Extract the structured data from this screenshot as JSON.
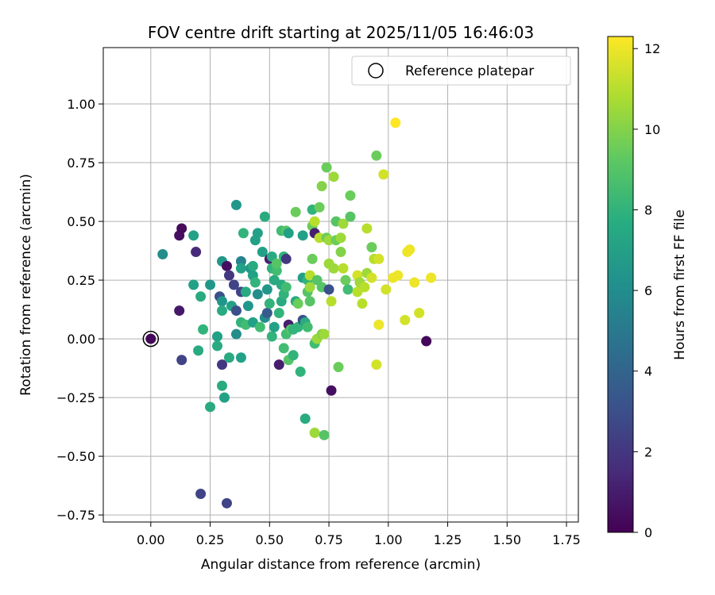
{
  "chart_data": {
    "type": "scatter",
    "title": "FOV centre drift starting at 2025/11/05 16:46:03",
    "xlabel": "Angular distance from reference (arcmin)",
    "ylabel": "Rotation from reference (arcmin)",
    "xlim": [
      -0.2,
      1.8
    ],
    "ylim": [
      -0.78,
      1.24
    ],
    "xticks": [
      "0.00",
      "0.25",
      "0.50",
      "0.75",
      "1.00",
      "1.25",
      "1.50",
      "1.75"
    ],
    "yticks": [
      "−0.75",
      "−0.50",
      "−0.25",
      "0.00",
      "0.25",
      "0.50",
      "0.75",
      "1.00"
    ],
    "grid": true,
    "legend": {
      "position": "top-right",
      "entries": [
        "Reference platepar"
      ]
    },
    "colorbar": {
      "label": "Hours from first FF file",
      "range": [
        0,
        12.3
      ],
      "ticks": [
        "0",
        "2",
        "4",
        "6",
        "8",
        "10",
        "12"
      ],
      "colormap": "viridis"
    },
    "reference_point": {
      "x": 0.0,
      "y": 0.0
    },
    "points": [
      {
        "x": 0.0,
        "y": 0.0,
        "c": 0.2
      },
      {
        "x": 0.12,
        "y": 0.44,
        "c": 0.5
      },
      {
        "x": 0.13,
        "y": 0.47,
        "c": 0.3
      },
      {
        "x": 0.12,
        "y": 0.12,
        "c": 0.8
      },
      {
        "x": 0.13,
        "y": -0.09,
        "c": 2.5
      },
      {
        "x": 0.19,
        "y": 0.37,
        "c": 1.5
      },
      {
        "x": 0.05,
        "y": 0.36,
        "c": 6.0
      },
      {
        "x": 0.18,
        "y": 0.44,
        "c": 7.0
      },
      {
        "x": 0.18,
        "y": 0.23,
        "c": 7.0
      },
      {
        "x": 0.2,
        "y": -0.05,
        "c": 7.5
      },
      {
        "x": 0.21,
        "y": 0.18,
        "c": 7.5
      },
      {
        "x": 0.22,
        "y": 0.04,
        "c": 8.0
      },
      {
        "x": 0.21,
        "y": -0.66,
        "c": 2.5
      },
      {
        "x": 0.25,
        "y": 0.23,
        "c": 6.5
      },
      {
        "x": 0.25,
        "y": -0.29,
        "c": 7.5
      },
      {
        "x": 0.28,
        "y": 0.01,
        "c": 7.0
      },
      {
        "x": 0.28,
        "y": -0.03,
        "c": 7.5
      },
      {
        "x": 0.29,
        "y": 0.18,
        "c": 3.0
      },
      {
        "x": 0.3,
        "y": 0.16,
        "c": 6.5
      },
      {
        "x": 0.3,
        "y": -0.11,
        "c": 2.0
      },
      {
        "x": 0.3,
        "y": 0.12,
        "c": 7.5
      },
      {
        "x": 0.3,
        "y": -0.2,
        "c": 7.5
      },
      {
        "x": 0.31,
        "y": -0.25,
        "c": 7.0
      },
      {
        "x": 0.3,
        "y": 0.33,
        "c": 6.5
      },
      {
        "x": 0.32,
        "y": -0.7,
        "c": 2.5
      },
      {
        "x": 0.32,
        "y": 0.31,
        "c": 0.5
      },
      {
        "x": 0.33,
        "y": 0.27,
        "c": 2.0
      },
      {
        "x": 0.33,
        "y": -0.08,
        "c": 7.5
      },
      {
        "x": 0.34,
        "y": 0.14,
        "c": 7.0
      },
      {
        "x": 0.35,
        "y": 0.23,
        "c": 2.5
      },
      {
        "x": 0.36,
        "y": 0.12,
        "c": 3.0
      },
      {
        "x": 0.36,
        "y": 0.57,
        "c": 6.5
      },
      {
        "x": 0.36,
        "y": 0.02,
        "c": 6.0
      },
      {
        "x": 0.38,
        "y": 0.33,
        "c": 5.5
      },
      {
        "x": 0.38,
        "y": 0.3,
        "c": 7.0
      },
      {
        "x": 0.38,
        "y": 0.2,
        "c": 2.5
      },
      {
        "x": 0.38,
        "y": 0.07,
        "c": 8.0
      },
      {
        "x": 0.38,
        "y": -0.08,
        "c": 7.0
      },
      {
        "x": 0.39,
        "y": 0.45,
        "c": 8.0
      },
      {
        "x": 0.4,
        "y": 0.2,
        "c": 7.5
      },
      {
        "x": 0.4,
        "y": 0.06,
        "c": 8.5
      },
      {
        "x": 0.41,
        "y": 0.14,
        "c": 6.5
      },
      {
        "x": 0.42,
        "y": 0.3,
        "c": 6.5
      },
      {
        "x": 0.43,
        "y": 0.31,
        "c": 7.5
      },
      {
        "x": 0.43,
        "y": 0.27,
        "c": 7.0
      },
      {
        "x": 0.43,
        "y": 0.07,
        "c": 7.0
      },
      {
        "x": 0.44,
        "y": 0.42,
        "c": 7.0
      },
      {
        "x": 0.44,
        "y": 0.24,
        "c": 8.0
      },
      {
        "x": 0.45,
        "y": 0.45,
        "c": 7.0
      },
      {
        "x": 0.45,
        "y": 0.19,
        "c": 6.0
      },
      {
        "x": 0.46,
        "y": 0.05,
        "c": 8.5
      },
      {
        "x": 0.47,
        "y": 0.37,
        "c": 7.0
      },
      {
        "x": 0.48,
        "y": 0.52,
        "c": 7.5
      },
      {
        "x": 0.48,
        "y": 0.09,
        "c": 6.0
      },
      {
        "x": 0.49,
        "y": 0.21,
        "c": 6.5
      },
      {
        "x": 0.49,
        "y": 0.11,
        "c": 3.5
      },
      {
        "x": 0.5,
        "y": 0.15,
        "c": 8.0
      },
      {
        "x": 0.5,
        "y": 0.34,
        "c": 1.0
      },
      {
        "x": 0.51,
        "y": 0.3,
        "c": 8.0
      },
      {
        "x": 0.51,
        "y": 0.01,
        "c": 8.0
      },
      {
        "x": 0.51,
        "y": 0.35,
        "c": 7.5
      },
      {
        "x": 0.52,
        "y": 0.25,
        "c": 7.5
      },
      {
        "x": 0.52,
        "y": 0.05,
        "c": 7.0
      },
      {
        "x": 0.53,
        "y": 0.29,
        "c": 8.5
      },
      {
        "x": 0.53,
        "y": 0.32,
        "c": 9.0
      },
      {
        "x": 0.54,
        "y": 0.11,
        "c": 8.0
      },
      {
        "x": 0.54,
        "y": -0.11,
        "c": 1.0
      },
      {
        "x": 0.55,
        "y": 0.16,
        "c": 7.5
      },
      {
        "x": 0.55,
        "y": 0.23,
        "c": 7.5
      },
      {
        "x": 0.55,
        "y": 0.46,
        "c": 8.5
      },
      {
        "x": 0.56,
        "y": 0.35,
        "c": 8.0
      },
      {
        "x": 0.56,
        "y": 0.19,
        "c": 8.0
      },
      {
        "x": 0.56,
        "y": -0.04,
        "c": 8.5
      },
      {
        "x": 0.57,
        "y": 0.46,
        "c": 9.0
      },
      {
        "x": 0.57,
        "y": 0.22,
        "c": 8.5
      },
      {
        "x": 0.57,
        "y": 0.02,
        "c": 8.5
      },
      {
        "x": 0.57,
        "y": 0.34,
        "c": 2.0
      },
      {
        "x": 0.58,
        "y": 0.45,
        "c": 7.0
      },
      {
        "x": 0.58,
        "y": 0.06,
        "c": 1.0
      },
      {
        "x": 0.58,
        "y": -0.09,
        "c": 9.0
      },
      {
        "x": 0.59,
        "y": 0.04,
        "c": 9.0
      },
      {
        "x": 0.6,
        "y": 0.04,
        "c": 8.0
      },
      {
        "x": 0.6,
        "y": -0.07,
        "c": 8.0
      },
      {
        "x": 0.61,
        "y": 0.54,
        "c": 9.5
      },
      {
        "x": 0.61,
        "y": 0.16,
        "c": 7.5
      },
      {
        "x": 0.62,
        "y": 0.15,
        "c": 9.5
      },
      {
        "x": 0.62,
        "y": 0.05,
        "c": 8.0
      },
      {
        "x": 0.63,
        "y": -0.14,
        "c": 8.0
      },
      {
        "x": 0.64,
        "y": 0.08,
        "c": 3.0
      },
      {
        "x": 0.64,
        "y": 0.44,
        "c": 7.0
      },
      {
        "x": 0.64,
        "y": 0.26,
        "c": 7.0
      },
      {
        "x": 0.65,
        "y": 0.07,
        "c": 7.5
      },
      {
        "x": 0.65,
        "y": -0.34,
        "c": 7.5
      },
      {
        "x": 0.66,
        "y": 0.05,
        "c": 8.5
      },
      {
        "x": 0.66,
        "y": 0.2,
        "c": 9.0
      },
      {
        "x": 0.66,
        "y": 0.25,
        "c": 8.0
      },
      {
        "x": 0.67,
        "y": 0.27,
        "c": 11.0
      },
      {
        "x": 0.67,
        "y": 0.22,
        "c": 10.5
      },
      {
        "x": 0.67,
        "y": 0.16,
        "c": 9.0
      },
      {
        "x": 0.68,
        "y": 0.48,
        "c": 9.5
      },
      {
        "x": 0.68,
        "y": 0.34,
        "c": 9.5
      },
      {
        "x": 0.68,
        "y": 0.55,
        "c": 8.0
      },
      {
        "x": 0.69,
        "y": 0.5,
        "c": 11.0
      },
      {
        "x": 0.69,
        "y": 0.45,
        "c": 1.0
      },
      {
        "x": 0.69,
        "y": -0.02,
        "c": 8.5
      },
      {
        "x": 0.69,
        "y": -0.4,
        "c": 10.5
      },
      {
        "x": 0.7,
        "y": 0.25,
        "c": 9.0
      },
      {
        "x": 0.7,
        "y": 0.0,
        "c": 10.5
      },
      {
        "x": 0.71,
        "y": 0.43,
        "c": 11.0
      },
      {
        "x": 0.71,
        "y": 0.56,
        "c": 9.5
      },
      {
        "x": 0.72,
        "y": 0.65,
        "c": 10.0
      },
      {
        "x": 0.72,
        "y": 0.22,
        "c": 9.0
      },
      {
        "x": 0.72,
        "y": 0.02,
        "c": 10.0
      },
      {
        "x": 0.73,
        "y": -0.41,
        "c": 9.0
      },
      {
        "x": 0.73,
        "y": 0.02,
        "c": 10.5
      },
      {
        "x": 0.74,
        "y": 0.43,
        "c": 9.5
      },
      {
        "x": 0.74,
        "y": 0.73,
        "c": 9.5
      },
      {
        "x": 0.75,
        "y": 0.21,
        "c": 3.0
      },
      {
        "x": 0.75,
        "y": 0.42,
        "c": 10.5
      },
      {
        "x": 0.75,
        "y": 0.32,
        "c": 10.5
      },
      {
        "x": 0.76,
        "y": 0.16,
        "c": 11.0
      },
      {
        "x": 0.76,
        "y": -0.22,
        "c": 0.5
      },
      {
        "x": 0.77,
        "y": 0.69,
        "c": 10.5
      },
      {
        "x": 0.77,
        "y": 0.3,
        "c": 10.5
      },
      {
        "x": 0.78,
        "y": 0.5,
        "c": 9.0
      },
      {
        "x": 0.78,
        "y": 0.42,
        "c": 9.5
      },
      {
        "x": 0.79,
        "y": -0.12,
        "c": 9.5
      },
      {
        "x": 0.8,
        "y": 0.43,
        "c": 10.5
      },
      {
        "x": 0.8,
        "y": 0.37,
        "c": 10.0
      },
      {
        "x": 0.81,
        "y": 0.3,
        "c": 11.0
      },
      {
        "x": 0.81,
        "y": 0.49,
        "c": 10.5
      },
      {
        "x": 0.82,
        "y": 0.25,
        "c": 9.5
      },
      {
        "x": 0.83,
        "y": 0.21,
        "c": 8.5
      },
      {
        "x": 0.84,
        "y": 0.52,
        "c": 9.0
      },
      {
        "x": 0.84,
        "y": 0.61,
        "c": 9.5
      },
      {
        "x": 0.87,
        "y": 0.2,
        "c": 11.0
      },
      {
        "x": 0.87,
        "y": 0.27,
        "c": 11.5
      },
      {
        "x": 0.88,
        "y": 0.24,
        "c": 10.5
      },
      {
        "x": 0.89,
        "y": 0.15,
        "c": 11.0
      },
      {
        "x": 0.9,
        "y": 0.22,
        "c": 11.0
      },
      {
        "x": 0.91,
        "y": 0.47,
        "c": 11.0
      },
      {
        "x": 0.91,
        "y": 0.28,
        "c": 10.5
      },
      {
        "x": 0.93,
        "y": 0.26,
        "c": 11.5
      },
      {
        "x": 0.93,
        "y": 0.39,
        "c": 9.5
      },
      {
        "x": 0.94,
        "y": 0.34,
        "c": 11.0
      },
      {
        "x": 0.95,
        "y": 0.78,
        "c": 9.5
      },
      {
        "x": 0.95,
        "y": -0.11,
        "c": 11.5
      },
      {
        "x": 0.96,
        "y": 0.34,
        "c": 11.5
      },
      {
        "x": 0.96,
        "y": 0.06,
        "c": 12.0
      },
      {
        "x": 0.98,
        "y": 0.7,
        "c": 11.5
      },
      {
        "x": 0.99,
        "y": 0.21,
        "c": 11.5
      },
      {
        "x": 1.02,
        "y": 0.26,
        "c": 12.0
      },
      {
        "x": 1.03,
        "y": 0.92,
        "c": 12.3
      },
      {
        "x": 1.04,
        "y": 0.27,
        "c": 12.0
      },
      {
        "x": 1.07,
        "y": 0.08,
        "c": 11.5
      },
      {
        "x": 1.08,
        "y": 0.37,
        "c": 12.0
      },
      {
        "x": 1.09,
        "y": 0.38,
        "c": 12.0
      },
      {
        "x": 1.11,
        "y": 0.24,
        "c": 12.0
      },
      {
        "x": 1.13,
        "y": 0.11,
        "c": 11.5
      },
      {
        "x": 1.16,
        "y": -0.01,
        "c": 0.2
      },
      {
        "x": 1.18,
        "y": 0.26,
        "c": 12.0
      }
    ]
  }
}
